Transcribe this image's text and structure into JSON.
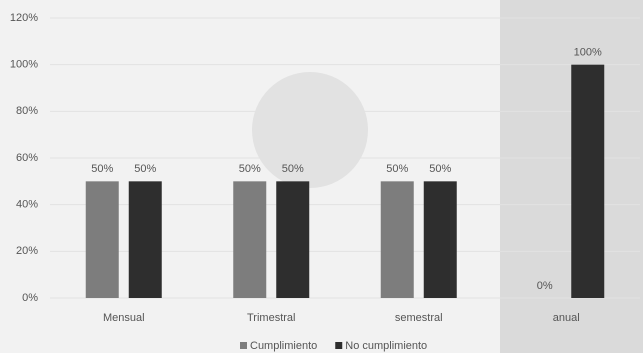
{
  "chart_data": {
    "type": "bar",
    "categories": [
      "Mensual",
      "Trimestral",
      "semestral",
      "anual"
    ],
    "series": [
      {
        "name": "Cumplimiento",
        "color": "#7d7d7d",
        "values": [
          50,
          50,
          50,
          0
        ],
        "value_labels": [
          "50%",
          "50%",
          "50%",
          "0%"
        ]
      },
      {
        "name": "No cumplimiento",
        "color": "#2e2e2e",
        "values": [
          50,
          50,
          50,
          100
        ],
        "value_labels": [
          "50%",
          "50%",
          "50%",
          "100%"
        ]
      }
    ],
    "ylim": [
      0,
      120
    ],
    "yticks": [
      {
        "value": 0,
        "label": "0%"
      },
      {
        "value": 20,
        "label": "20%"
      },
      {
        "value": 40,
        "label": "40%"
      },
      {
        "value": 60,
        "label": "60%"
      },
      {
        "value": 80,
        "label": "80%"
      },
      {
        "value": 100,
        "label": "100%"
      },
      {
        "value": 120,
        "label": "120%"
      }
    ],
    "grid": true,
    "legend": "bottom"
  }
}
